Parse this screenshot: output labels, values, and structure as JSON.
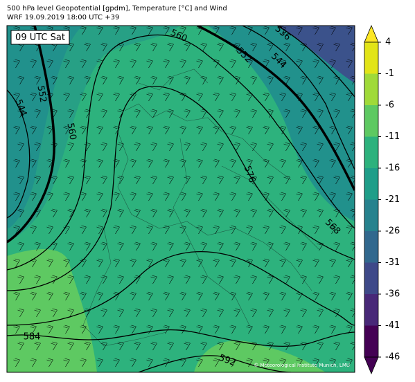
{
  "header": {
    "title_line1": "500 hPa level Geopotential [gpdm], Temperature [°C] and Wind",
    "title_line2": "WRF 19.09.2019 18:00 UTC +39"
  },
  "map": {
    "time_label": "09 UTC Sat",
    "copyright": "© Meteorological Institute Munich, LMU",
    "contour_labels": [
      "560",
      "536",
      "552",
      "544",
      "552",
      "544",
      "560",
      "576",
      "568",
      "584",
      "592"
    ]
  },
  "colorbar": {
    "ticks": [
      4,
      -1,
      -6,
      -11,
      -16,
      -21,
      -26,
      -31,
      -36,
      -41,
      -46
    ]
  }
}
